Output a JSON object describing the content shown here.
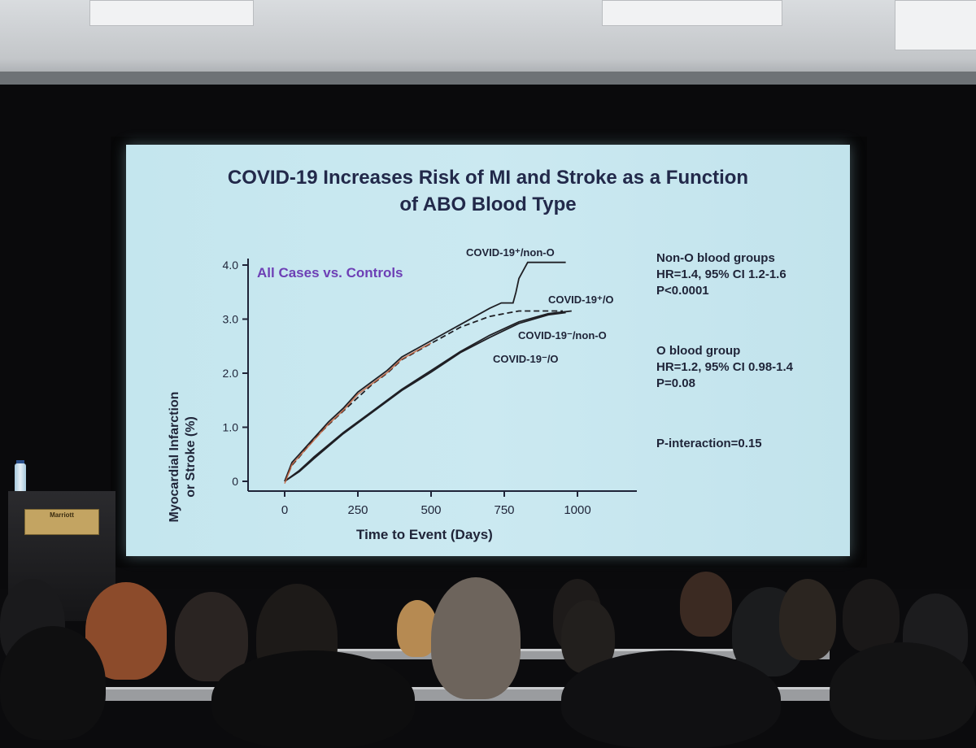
{
  "slide": {
    "title_line1": "COVID-19 Increases Risk of MI and Stroke as a Function",
    "title_line2": "of ABO Blood Type",
    "panel_label": "All Cases vs. Controls",
    "ylabel_line1": "Myocardial Infarction",
    "ylabel_line2": "or Stroke (%)",
    "xlabel": "Time to Event (Days)",
    "stats": {
      "nono": {
        "heading": "Non-O blood groups",
        "hr": "HR=1.4, 95% CI 1.2-1.6",
        "p": "P<0.0001"
      },
      "o": {
        "heading": "O blood group",
        "hr": "HR=1.2, 95% CI 0.98-1.4",
        "p": "P=0.08"
      },
      "interaction": "P-interaction=0.15"
    }
  },
  "podium": {
    "brand": "Marriott"
  },
  "chart_data": {
    "type": "line",
    "ylabel": "Myocardial Infarction or Stroke (%)",
    "xlabel": "Time to Event (Days)",
    "xlim": [
      0,
      1200
    ],
    "ylim": [
      0,
      4.0
    ],
    "x_ticks": [
      "0",
      "250",
      "500",
      "750",
      "1000"
    ],
    "x_tick_values": [
      0,
      250,
      500,
      750,
      1000
    ],
    "y_ticks": [
      "0",
      "1.0",
      "2.0",
      "3.0",
      "4.0"
    ],
    "y_tick_values": [
      0,
      1.0,
      2.0,
      3.0,
      4.0
    ],
    "series": [
      {
        "name": "COVID-19⁺/non-O",
        "style": "solid",
        "color": "#1f1f24",
        "x": [
          0,
          25,
          50,
          100,
          150,
          200,
          250,
          300,
          350,
          400,
          450,
          500,
          550,
          600,
          650,
          700,
          740,
          760,
          780,
          790,
          800,
          830,
          960
        ],
        "y": [
          0,
          0.35,
          0.5,
          0.8,
          1.1,
          1.35,
          1.65,
          1.85,
          2.05,
          2.3,
          2.45,
          2.6,
          2.75,
          2.9,
          3.05,
          3.2,
          3.3,
          3.3,
          3.3,
          3.5,
          3.75,
          4.05,
          4.05
        ]
      },
      {
        "name": "COVID-19⁺/O",
        "style": "dashed",
        "color": "#1f1f24",
        "x": [
          0,
          25,
          50,
          100,
          150,
          200,
          250,
          300,
          350,
          400,
          450,
          500,
          550,
          600,
          650,
          700,
          750,
          800,
          850,
          900,
          950
        ],
        "y": [
          0,
          0.3,
          0.45,
          0.78,
          1.05,
          1.3,
          1.55,
          1.8,
          2.0,
          2.25,
          2.4,
          2.55,
          2.7,
          2.85,
          2.95,
          3.05,
          3.1,
          3.15,
          3.15,
          3.15,
          3.15
        ]
      },
      {
        "name": "COVID-19⁻/non-O",
        "style": "solid",
        "color": "#1f1f24",
        "x": [
          0,
          50,
          100,
          200,
          300,
          400,
          500,
          600,
          700,
          800,
          900,
          980
        ],
        "y": [
          0,
          0.2,
          0.45,
          0.9,
          1.3,
          1.7,
          2.05,
          2.4,
          2.7,
          2.95,
          3.1,
          3.15
        ]
      },
      {
        "name": "COVID-19⁻/O",
        "style": "solid",
        "color": "#1f1f24",
        "x": [
          0,
          50,
          100,
          200,
          300,
          400,
          500,
          600,
          700,
          800,
          900,
          960
        ],
        "y": [
          0,
          0.18,
          0.42,
          0.88,
          1.28,
          1.68,
          2.02,
          2.38,
          2.66,
          2.92,
          3.08,
          3.12
        ]
      }
    ],
    "overlay": {
      "color": "#c9653f",
      "note_series": "COVID-19⁺/non-O"
    },
    "annotations": [
      "COVID-19⁺/non-O",
      "COVID-19⁺/O",
      "COVID-19⁻/non-O",
      "COVID-19⁻/O"
    ],
    "grid": false,
    "legend": "inline labels"
  }
}
